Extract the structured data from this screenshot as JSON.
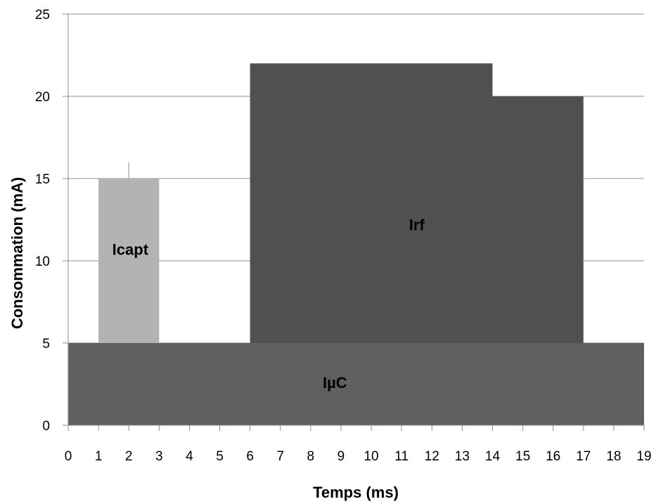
{
  "chart_data": {
    "type": "area",
    "xlabel": "Temps (ms)",
    "ylabel": "Consommation (mA)",
    "xlim": [
      0,
      19
    ],
    "ylim": [
      0,
      25
    ],
    "x_ticks": [
      "0",
      "1",
      "2",
      "3",
      "4",
      "5",
      "6",
      "7",
      "8",
      "9",
      "10",
      "11",
      "12",
      "13",
      "14",
      "15",
      "16",
      "17",
      "18",
      "19"
    ],
    "y_ticks": [
      "0",
      "5",
      "10",
      "15",
      "20",
      "25"
    ],
    "grid": "horizontal",
    "regions": [
      {
        "label": "IµC",
        "segments": [
          {
            "x0": 0,
            "x1": 19,
            "y0": 0,
            "y1": 5
          }
        ],
        "color": "#606060",
        "label_at": [
          8.8,
          2.6
        ]
      },
      {
        "label": "Icapt",
        "segments": [
          {
            "x0": 1,
            "x1": 3,
            "y0": 5,
            "y1": 15
          }
        ],
        "color": "#b3b3b3",
        "label_at": [
          2.05,
          10.7
        ]
      },
      {
        "label": "Irf",
        "segments": [
          {
            "x0": 6,
            "x1": 14,
            "y0": 5,
            "y1": 22
          },
          {
            "x0": 14,
            "x1": 17,
            "y0": 5,
            "y1": 20
          }
        ],
        "color": "#505050",
        "label_at": [
          11.5,
          12.2
        ]
      }
    ],
    "error_bar": {
      "x": 2,
      "y_from": 15,
      "y_to": 16
    }
  }
}
